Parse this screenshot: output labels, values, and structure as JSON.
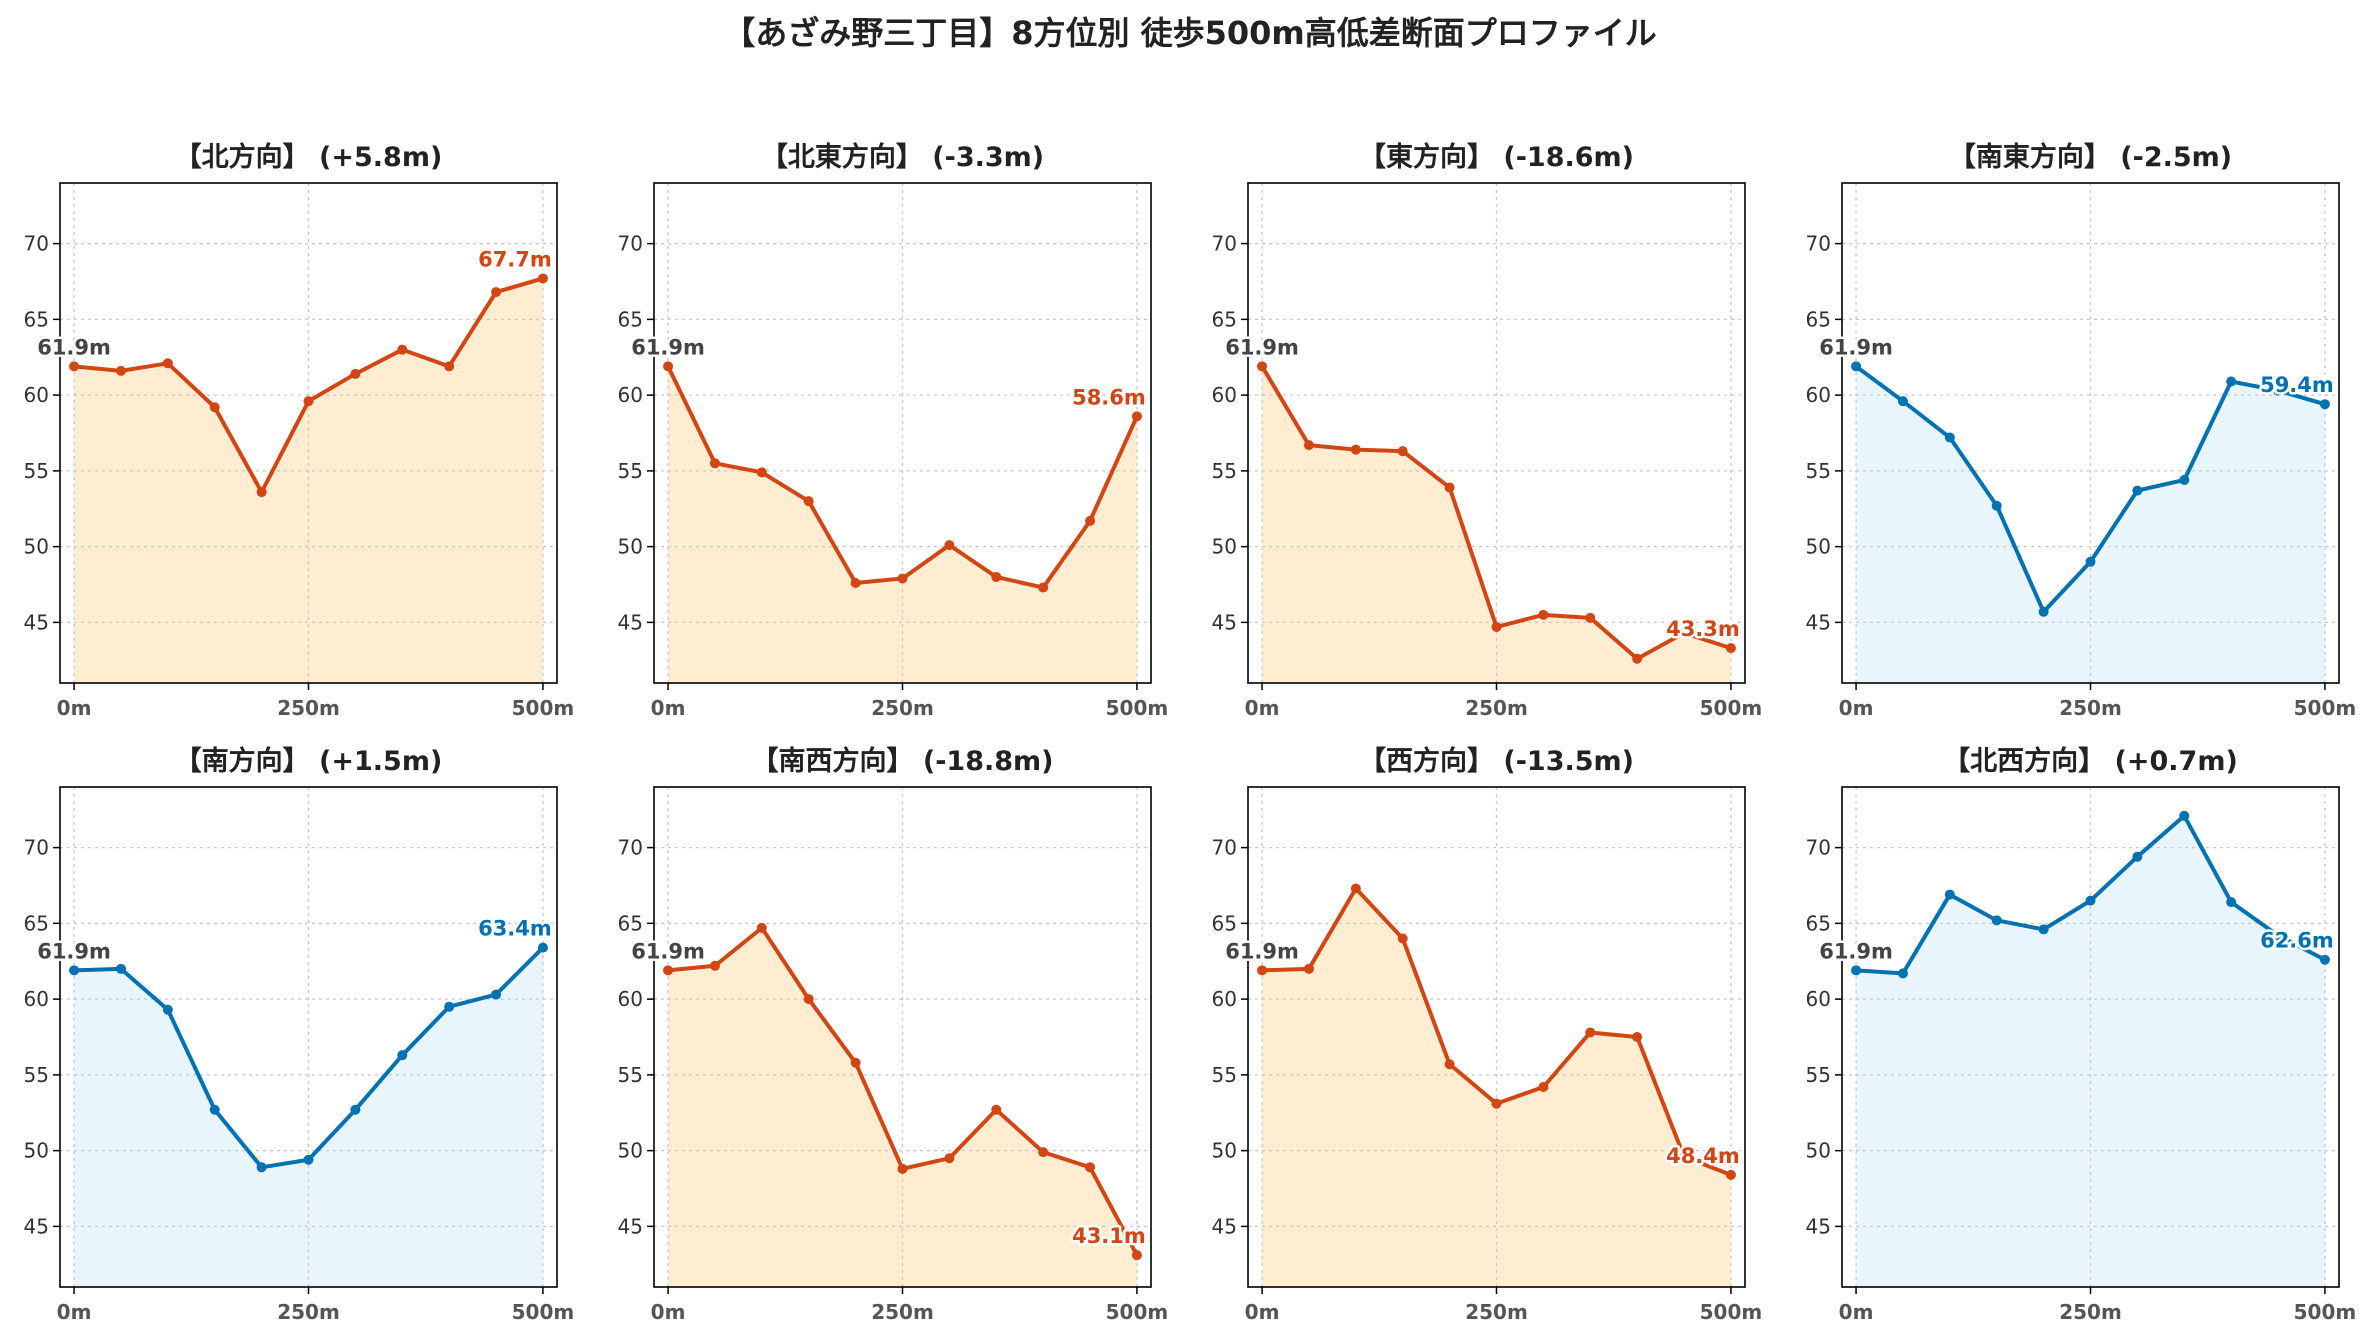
{
  "chart_data": {
    "type": "line",
    "title": "【あざみ野三丁目】8方位別 徒歩500m高低差断面プロファイル",
    "x": [
      0,
      50,
      100,
      150,
      200,
      250,
      300,
      350,
      400,
      450,
      500
    ],
    "xticks": [
      {
        "value": 0,
        "label": "0m"
      },
      {
        "value": 250,
        "label": "250m"
      },
      {
        "value": 500,
        "label": "500m"
      }
    ],
    "xlim": [
      -15,
      515
    ],
    "yticks": [
      45,
      50,
      55,
      60,
      65,
      70
    ],
    "ylim": [
      41,
      74
    ],
    "grid": true,
    "colors": {
      "rise": "#0072b2",
      "fall": "#d44514",
      "rise_fill": "#e9f5fc",
      "fall_fill": "#ffedd2"
    },
    "panels": [
      {
        "title": "【北方向】 (+5.8m)",
        "trend": "fall",
        "start_label": "61.9m",
        "end_label": "67.7m",
        "values": [
          61.9,
          61.6,
          62.1,
          59.2,
          53.6,
          59.6,
          61.4,
          63.0,
          61.9,
          66.8,
          67.7
        ]
      },
      {
        "title": "【北東方向】 (-3.3m)",
        "trend": "fall",
        "start_label": "61.9m",
        "end_label": "58.6m",
        "values": [
          61.9,
          55.5,
          54.9,
          53.0,
          47.6,
          47.9,
          50.1,
          48.0,
          47.3,
          51.7,
          58.6
        ]
      },
      {
        "title": "【東方向】 (-18.6m)",
        "trend": "fall",
        "start_label": "61.9m",
        "end_label": "43.3m",
        "values": [
          61.9,
          56.7,
          56.4,
          56.3,
          53.9,
          44.7,
          45.5,
          45.3,
          42.6,
          44.3,
          43.3
        ]
      },
      {
        "title": "【南東方向】 (-2.5m)",
        "trend": "rise",
        "start_label": "61.9m",
        "end_label": "59.4m",
        "values": [
          61.9,
          59.6,
          57.2,
          52.7,
          45.7,
          49.0,
          53.7,
          54.4,
          60.9,
          60.3,
          59.4
        ]
      },
      {
        "title": "【南方向】 (+1.5m)",
        "trend": "rise",
        "start_label": "61.9m",
        "end_label": "63.4m",
        "values": [
          61.9,
          62.0,
          59.3,
          52.7,
          48.9,
          49.4,
          52.7,
          56.3,
          59.5,
          60.3,
          63.4
        ]
      },
      {
        "title": "【南西方向】 (-18.8m)",
        "trend": "fall",
        "start_label": "61.9m",
        "end_label": "43.1m",
        "values": [
          61.9,
          62.2,
          64.7,
          60.0,
          55.8,
          48.8,
          49.5,
          52.7,
          49.9,
          48.9,
          43.1
        ]
      },
      {
        "title": "【西方向】 (-13.5m)",
        "trend": "fall",
        "start_label": "61.9m",
        "end_label": "48.4m",
        "values": [
          61.9,
          62.0,
          67.3,
          64.0,
          55.7,
          53.1,
          54.2,
          57.8,
          57.5,
          49.6,
          48.4
        ]
      },
      {
        "title": "【北西方向】 (+0.7m)",
        "trend": "rise",
        "start_label": "61.9m",
        "end_label": "62.6m",
        "values": [
          61.9,
          61.7,
          66.9,
          65.2,
          64.6,
          66.5,
          69.4,
          72.1,
          66.4,
          64.2,
          62.6
        ]
      }
    ]
  }
}
